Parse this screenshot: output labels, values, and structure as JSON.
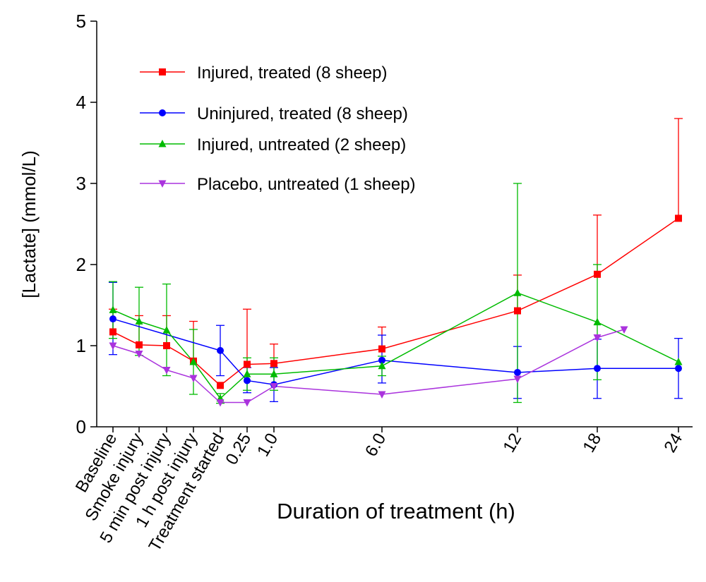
{
  "chart_data": {
    "type": "line",
    "title": "",
    "xlabel": "Duration of treatment (h)",
    "ylabel": "[Lactate] (mmol/L)",
    "ylim": [
      0,
      5
    ],
    "yticks": [
      "0",
      "1",
      "2",
      "3",
      "4",
      "5"
    ],
    "x_categories": [
      "Baseline",
      "Smoke injury",
      "5 min post injury",
      "1 h post injury",
      "Treatment started",
      "0.25",
      "1.0",
      "6.0",
      "12",
      "18",
      "24"
    ],
    "legend_position": "top-left",
    "grid": false,
    "series": [
      {
        "name": "Injured, treated (8 sheep)",
        "color": "#ff0000",
        "marker": "square",
        "x": [
          "Baseline",
          "Smoke injury",
          "5 min post injury",
          "1 h post injury",
          "Treatment started",
          "0.25",
          "1.0",
          "6.0",
          "12",
          "18",
          "24"
        ],
        "y": [
          1.17,
          1.01,
          1.0,
          0.81,
          0.51,
          0.77,
          0.78,
          0.96,
          1.43,
          1.88,
          2.57
        ],
        "err_upper": [
          1.45,
          1.37,
          1.37,
          1.3,
          null,
          1.45,
          1.02,
          1.23,
          1.87,
          2.61,
          3.8
        ],
        "err_lower": [
          null,
          null,
          null,
          null,
          null,
          null,
          null,
          null,
          null,
          null,
          null
        ]
      },
      {
        "name": "Uninjured, treated (8 sheep)",
        "color": "#0000ff",
        "marker": "circle",
        "x": [
          "Baseline",
          "Treatment started",
          "0.25",
          "1.0",
          "6.0",
          "12",
          "18",
          "24"
        ],
        "y": [
          1.33,
          0.94,
          0.57,
          0.52,
          0.82,
          0.67,
          0.72,
          0.72
        ],
        "err_upper": [
          1.78,
          1.25,
          0.73,
          0.73,
          1.13,
          0.99,
          1.08,
          1.09
        ],
        "err_lower": [
          0.89,
          0.63,
          0.42,
          0.31,
          0.54,
          0.35,
          0.35,
          0.35
        ]
      },
      {
        "name": "Injured, untreated (2 sheep)",
        "color": "#00bb00",
        "marker": "triangle-up",
        "x": [
          "Baseline",
          "Smoke injury",
          "5 min post injury",
          "1 h post injury",
          "Treatment started",
          "0.25",
          "1.0",
          "6.0",
          "12",
          "18",
          "24"
        ],
        "y": [
          1.44,
          1.3,
          1.19,
          0.8,
          0.35,
          0.65,
          0.65,
          0.75,
          1.65,
          1.29,
          0.8
        ],
        "err_upper": [
          1.79,
          1.72,
          1.76,
          1.2,
          0.41,
          0.85,
          0.85,
          0.87,
          3.0,
          2.0,
          null
        ],
        "err_lower": [
          1.09,
          0.88,
          0.63,
          0.4,
          0.29,
          0.45,
          0.45,
          0.63,
          0.3,
          0.58,
          null
        ]
      },
      {
        "name": "Placebo, untreated (1 sheep)",
        "color": "#aa33dd",
        "marker": "triangle-down",
        "x": [
          "Baseline",
          "Smoke injury",
          "5 min post injury",
          "1 h post injury",
          "Treatment started",
          "0.25",
          "1.0",
          "6.0",
          "12",
          "18",
          "~20"
        ],
        "y": [
          1.0,
          0.9,
          0.7,
          0.6,
          0.3,
          0.3,
          0.5,
          0.4,
          0.59,
          1.1,
          1.2
        ],
        "err_upper": [],
        "err_lower": []
      }
    ]
  }
}
